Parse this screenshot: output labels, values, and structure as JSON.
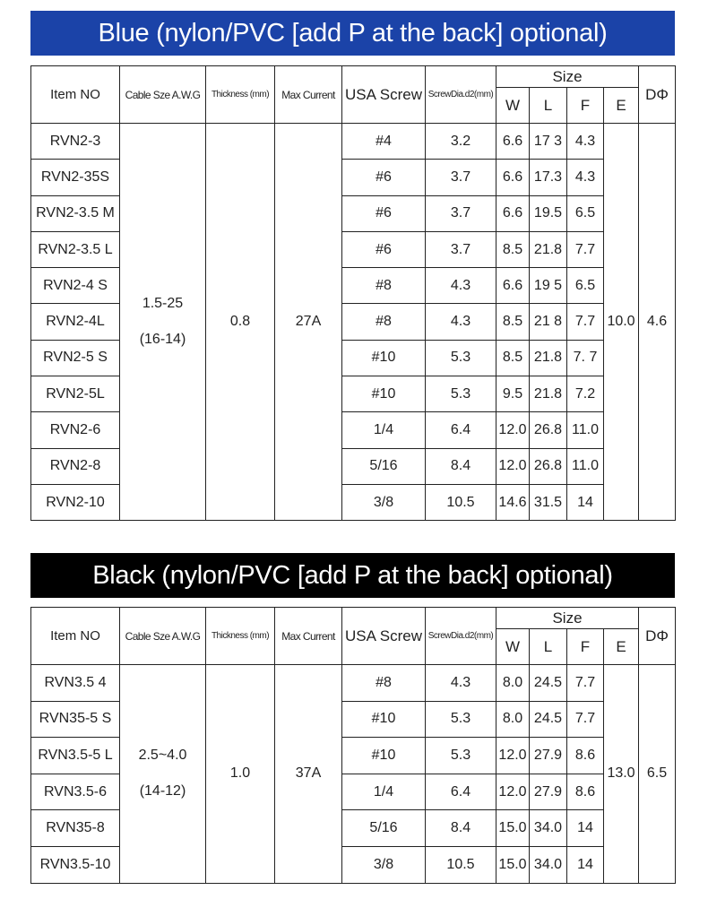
{
  "colors": {
    "blue_banner": "#1b43a8",
    "black_banner": "#000000"
  },
  "headers": {
    "item_no": "Item NO",
    "cable_size": "Cable Sze A.W.G",
    "thickness": "Thickness (mm)",
    "max_current": "Max Current",
    "usa_screw": "USA Screw",
    "screw_dia": "ScrewDia.d2(mm)",
    "size": "Size",
    "w": "W",
    "l": "L",
    "f": "F",
    "e": "E",
    "d": "DΦ"
  },
  "tables": [
    {
      "title": "Blue (nylon/PVC [add P at the back] optional)",
      "cable_size": [
        "1.5-25",
        "(16-14)"
      ],
      "thickness": "0.8",
      "max_current": "27A",
      "e": "10.0",
      "d": "4.6",
      "rows": [
        {
          "item": "RVN2-3",
          "screw": "#4",
          "dia": "3.2",
          "w": "6.6",
          "l": "17 3",
          "f": "4.3"
        },
        {
          "item": "RVN2-35S",
          "screw": "#6",
          "dia": "3.7",
          "w": "6.6",
          "l": "17.3",
          "f": "4.3"
        },
        {
          "item": "RVN2-3.5 M",
          "screw": "#6",
          "dia": "3.7",
          "w": "6.6",
          "l": "19.5",
          "f": "6.5"
        },
        {
          "item": "RVN2-3.5 L",
          "screw": "#6",
          "dia": "3.7",
          "w": "8.5",
          "l": "21.8",
          "f": "7.7"
        },
        {
          "item": "RVN2-4 S",
          "screw": "#8",
          "dia": "4.3",
          "w": "6.6",
          "l": "19 5",
          "f": "6.5"
        },
        {
          "item": "RVN2-4L",
          "screw": "#8",
          "dia": "4.3",
          "w": "8.5",
          "l": "21 8",
          "f": "7.7"
        },
        {
          "item": "RVN2-5 S",
          "screw": "#10",
          "dia": "5.3",
          "w": "8.5",
          "l": "21.8",
          "f": "7. 7"
        },
        {
          "item": "RVN2-5L",
          "screw": "#10",
          "dia": "5.3",
          "w": "9.5",
          "l": "21.8",
          "f": "7.2"
        },
        {
          "item": "RVN2-6",
          "screw": "1/4",
          "dia": "6.4",
          "w": "12.0",
          "l": "26.8",
          "f": "11.0"
        },
        {
          "item": "RVN2-8",
          "screw": "5/16",
          "dia": "8.4",
          "w": "12.0",
          "l": "26.8",
          "f": "11.0"
        },
        {
          "item": "RVN2-10",
          "screw": "3/8",
          "dia": "10.5",
          "w": "14.6",
          "l": "31.5",
          "f": "14"
        }
      ]
    },
    {
      "title": "Black (nylon/PVC [add P at the back] optional)",
      "cable_size": [
        "2.5~4.0",
        "(14-12)"
      ],
      "thickness": "1.0",
      "max_current": "37A",
      "e": "13.0",
      "d": "6.5",
      "rows": [
        {
          "item": "RVN3.5 4",
          "screw": "#8",
          "dia": "4.3",
          "w": "8.0",
          "l": "24.5",
          "f": "7.7"
        },
        {
          "item": "RVN35-5 S",
          "screw": "#10",
          "dia": "5.3",
          "w": "8.0",
          "l": "24.5",
          "f": "7.7"
        },
        {
          "item": "RVN3.5-5 L",
          "screw": "#10",
          "dia": "5.3",
          "w": "12.0",
          "l": "27.9",
          "f": "8.6"
        },
        {
          "item": "RVN3.5-6",
          "screw": "1/4",
          "dia": "6.4",
          "w": "12.0",
          "l": "27.9",
          "f": "8.6"
        },
        {
          "item": "RVN35-8",
          "screw": "5/16",
          "dia": "8.4",
          "w": "15.0",
          "l": "34.0",
          "f": "14"
        },
        {
          "item": "RVN3.5-10",
          "screw": "3/8",
          "dia": "10.5",
          "w": "15.0",
          "l": "34.0",
          "f": "14"
        }
      ]
    }
  ]
}
